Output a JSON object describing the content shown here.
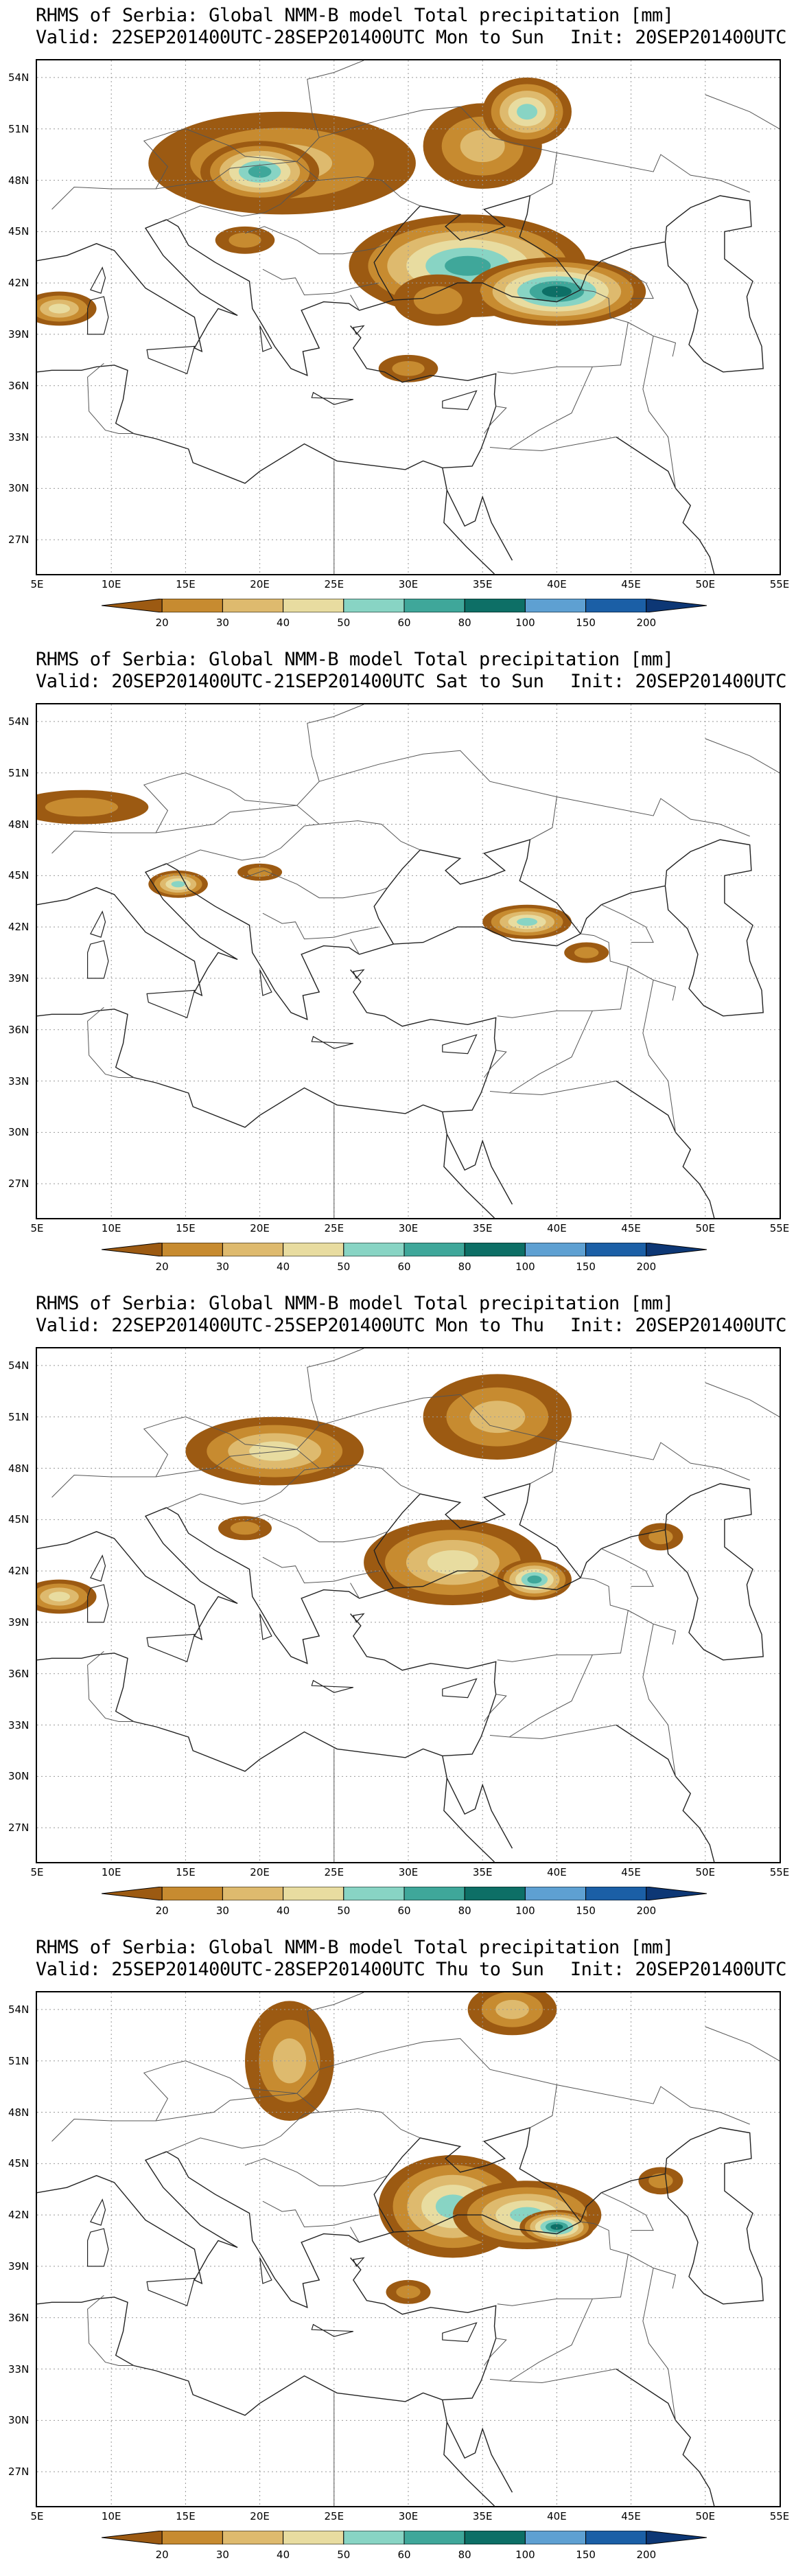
{
  "colorbar": {
    "levels": [
      "20",
      "30",
      "40",
      "50",
      "60",
      "80",
      "100",
      "150",
      "200"
    ],
    "colors": [
      "#9c5a12",
      "#c78b30",
      "#deba6e",
      "#e8dca0",
      "#88d4c4",
      "#3fa79a",
      "#0d6f66",
      "#5ea0d2",
      "#1b5fa6",
      "#0d3775"
    ]
  },
  "axes": {
    "lat_labels": [
      "54N",
      "51N",
      "48N",
      "45N",
      "42N",
      "39N",
      "36N",
      "33N",
      "30N",
      "27N"
    ],
    "lon_labels": [
      "5E",
      "10E",
      "15E",
      "20E",
      "25E",
      "30E",
      "35E",
      "40E",
      "45E",
      "50E",
      "55E"
    ]
  },
  "panels": [
    {
      "title": "RHMS of Serbia: Global NMM-B model Total precipitation [mm]",
      "valid": "Valid: 22SEP201400UTC-28SEP201400UTC Mon to Sun",
      "init": "Init: 20SEP201400UTC",
      "blobs": [
        {
          "lon": 21.5,
          "lat": 49.0,
          "rx": 9,
          "ry": 3,
          "lvl": 2
        },
        {
          "lon": 20.0,
          "lat": 48.5,
          "rx": 4,
          "ry": 1.8,
          "lvl": 5
        },
        {
          "lon": 34,
          "lat": 43,
          "rx": 8,
          "ry": 3,
          "lvl": 5
        },
        {
          "lon": 40,
          "lat": 41.5,
          "rx": 6,
          "ry": 2,
          "lvl": 6
        },
        {
          "lon": 35,
          "lat": 50,
          "rx": 4,
          "ry": 2.5,
          "lvl": 2
        },
        {
          "lon": 38,
          "lat": 52,
          "rx": 3,
          "ry": 2,
          "lvl": 4
        },
        {
          "lon": 6.5,
          "lat": 40.5,
          "rx": 2.5,
          "ry": 1,
          "lvl": 3
        },
        {
          "lon": 32,
          "lat": 41,
          "rx": 3,
          "ry": 1.5,
          "lvl": 1
        },
        {
          "lon": 19,
          "lat": 44.5,
          "rx": 2,
          "ry": 0.8,
          "lvl": 1
        },
        {
          "lon": 30,
          "lat": 37,
          "rx": 2,
          "ry": 0.8,
          "lvl": 1
        }
      ]
    },
    {
      "title": "RHMS of Serbia: Global NMM-B model Total precipitation [mm]",
      "valid": "Valid: 20SEP201400UTC-21SEP201400UTC Sat to Sun",
      "init": "Init: 20SEP201400UTC",
      "blobs": [
        {
          "lon": 8,
          "lat": 49,
          "rx": 4.5,
          "ry": 1,
          "lvl": 1
        },
        {
          "lon": 14.5,
          "lat": 44.5,
          "rx": 2,
          "ry": 0.8,
          "lvl": 4
        },
        {
          "lon": 20,
          "lat": 45.2,
          "rx": 1.5,
          "ry": 0.5,
          "lvl": 1
        },
        {
          "lon": 38,
          "lat": 42.3,
          "rx": 3,
          "ry": 1,
          "lvl": 4
        },
        {
          "lon": 42,
          "lat": 40.5,
          "rx": 1.5,
          "ry": 0.6,
          "lvl": 1
        }
      ]
    },
    {
      "title": "RHMS of Serbia: Global NMM-B model Total precipitation [mm]",
      "valid": "Valid: 22SEP201400UTC-25SEP201400UTC Mon to Thu",
      "init": "Init: 20SEP201400UTC",
      "blobs": [
        {
          "lon": 21,
          "lat": 49,
          "rx": 6,
          "ry": 2,
          "lvl": 3
        },
        {
          "lon": 33,
          "lat": 42.5,
          "rx": 6,
          "ry": 2.5,
          "lvl": 3
        },
        {
          "lon": 36,
          "lat": 51,
          "rx": 5,
          "ry": 2.5,
          "lvl": 2
        },
        {
          "lon": 6.5,
          "lat": 40.5,
          "rx": 2.5,
          "ry": 1,
          "lvl": 3
        },
        {
          "lon": 38.5,
          "lat": 41.5,
          "rx": 2.5,
          "ry": 1.2,
          "lvl": 5
        },
        {
          "lon": 19,
          "lat": 44.5,
          "rx": 1.8,
          "ry": 0.7,
          "lvl": 1
        },
        {
          "lon": 47,
          "lat": 44,
          "rx": 1.5,
          "ry": 0.8,
          "lvl": 1
        }
      ]
    },
    {
      "title": "RHMS of Serbia: Global NMM-B model Total precipitation [mm]",
      "valid": "Valid: 25SEP201400UTC-28SEP201400UTC Thu to Sun",
      "init": "Init: 20SEP201400UTC",
      "blobs": [
        {
          "lon": 33,
          "lat": 42.5,
          "rx": 5,
          "ry": 3,
          "lvl": 4
        },
        {
          "lon": 38,
          "lat": 42,
          "rx": 5,
          "ry": 2,
          "lvl": 4
        },
        {
          "lon": 40,
          "lat": 41.3,
          "rx": 2.5,
          "ry": 1,
          "lvl": 6
        },
        {
          "lon": 22,
          "lat": 51,
          "rx": 3,
          "ry": 3.5,
          "lvl": 2
        },
        {
          "lon": 37,
          "lat": 54,
          "rx": 3,
          "ry": 1.5,
          "lvl": 2
        },
        {
          "lon": 47,
          "lat": 44,
          "rx": 1.5,
          "ry": 0.8,
          "lvl": 1
        },
        {
          "lon": 30,
          "lat": 37.5,
          "rx": 1.5,
          "ry": 0.7,
          "lvl": 1
        }
      ]
    }
  ]
}
